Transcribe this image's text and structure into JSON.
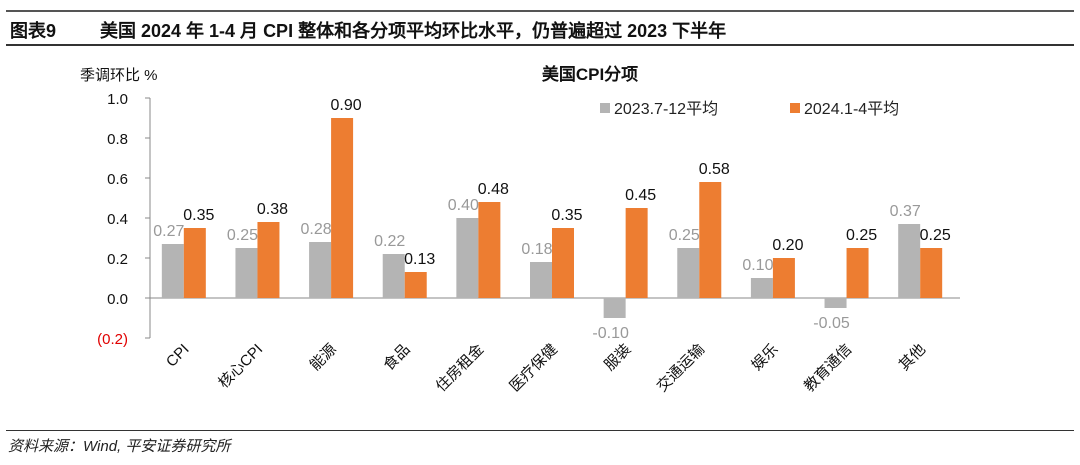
{
  "header": {
    "figure_no": "图表9",
    "title": "美国 2024 年 1-4 月 CPI 整体和各分项平均环比水平，仍普遍超过 2023 下半年"
  },
  "footer": {
    "source": "资料来源：Wind, 平安证券研究所"
  },
  "chart_data": {
    "type": "bar",
    "title": "美国CPI分项",
    "ylabel": "季调环比 %",
    "ylim": [
      -0.2,
      1.0
    ],
    "yticks": [
      {
        "v": 1.0,
        "label": "1.0"
      },
      {
        "v": 0.8,
        "label": "0.8"
      },
      {
        "v": 0.6,
        "label": "0.6"
      },
      {
        "v": 0.4,
        "label": "0.4"
      },
      {
        "v": 0.2,
        "label": "0.2"
      },
      {
        "v": 0.0,
        "label": "0.0"
      },
      {
        "v": -0.2,
        "label": "(0.2)"
      }
    ],
    "legend_position": "top-right",
    "categories": [
      "CPI",
      "核心CPI",
      "能源",
      "食品",
      "住房租金",
      "医疗保健",
      "服装",
      "交通运输",
      "娱乐",
      "教育通信",
      "其他"
    ],
    "series": [
      {
        "name": "2023.7-12平均",
        "color": "#b4b4b4",
        "label_color": "#999999",
        "values": [
          0.27,
          0.25,
          0.28,
          0.22,
          0.4,
          0.18,
          -0.1,
          0.25,
          0.1,
          -0.05,
          0.37
        ]
      },
      {
        "name": "2024.1-4平均",
        "color": "#ed7d31",
        "label_color": "#111111",
        "values": [
          0.35,
          0.38,
          0.9,
          0.13,
          0.48,
          0.35,
          0.45,
          0.58,
          0.2,
          0.25,
          0.25
        ]
      }
    ],
    "negative_tick_color": "#e00000"
  }
}
